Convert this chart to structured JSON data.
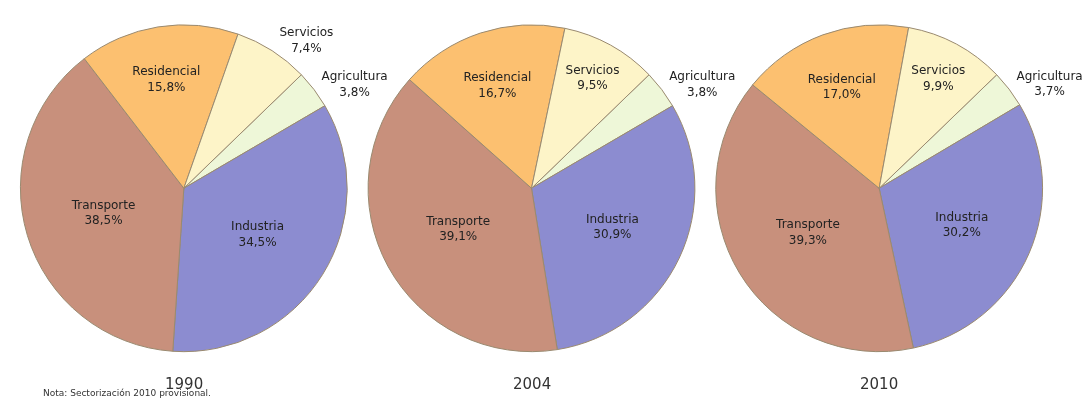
{
  "chart_data": [
    {
      "type": "pie",
      "title": "1990",
      "categories": [
        "Agricultura",
        "Industria",
        "Transporte",
        "Residencial",
        "Servicios"
      ],
      "values": [
        3.8,
        34.5,
        38.5,
        15.8,
        7.4
      ],
      "value_labels": [
        "3,8%",
        "34,5%",
        "38,5%",
        "15,8%",
        "7,4%"
      ],
      "colors": [
        "#eef7d8",
        "#8c8cd0",
        "#c8907c",
        "#fcc070",
        "#fdf4c8"
      ],
      "annotations": [
        "Nota: Sectorización 2010 provisional."
      ]
    },
    {
      "type": "pie",
      "title": "2004",
      "categories": [
        "Agricultura",
        "Industria",
        "Transporte",
        "Residencial",
        "Servicios"
      ],
      "values": [
        3.8,
        30.9,
        39.1,
        16.7,
        9.5
      ],
      "value_labels": [
        "3,8%",
        "30,9%",
        "39,1%",
        "16,7%",
        "9,5%"
      ],
      "colors": [
        "#eef7d8",
        "#8c8cd0",
        "#c8907c",
        "#fcc070",
        "#fdf4c8"
      ]
    },
    {
      "type": "pie",
      "title": "2010",
      "categories": [
        "Agricultura",
        "Industria",
        "Transporte",
        "Residencial",
        "Servicios"
      ],
      "values": [
        3.7,
        30.2,
        39.3,
        17.0,
        9.9
      ],
      "value_labels": [
        "3,7%",
        "30,2%",
        "39,3%",
        "17,0%",
        "9,9%"
      ],
      "colors": [
        "#eef7d8",
        "#8c8cd0",
        "#c8907c",
        "#fcc070",
        "#fdf4c8"
      ]
    }
  ]
}
